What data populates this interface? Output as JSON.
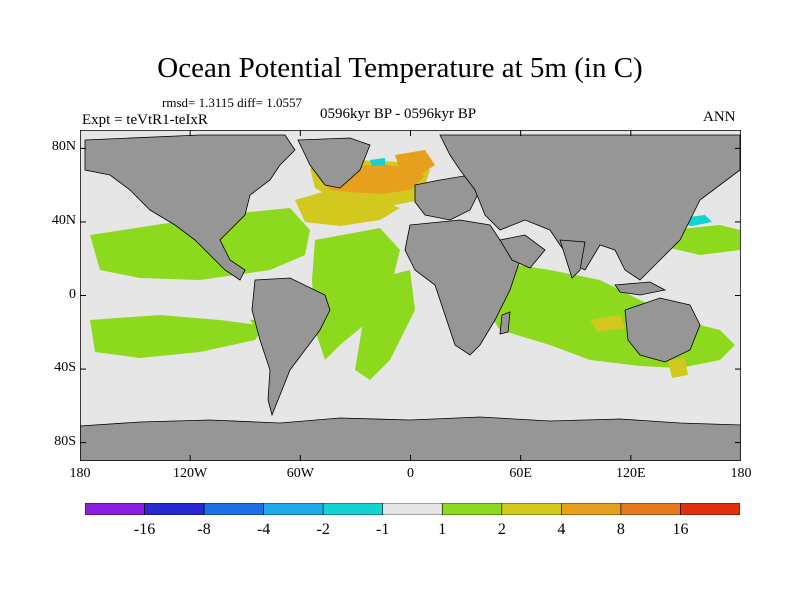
{
  "title": "Ocean Potential Temperature at 5m (in C)",
  "stats": "rmsd= 1.3115  diff= 1.0557",
  "experiment": "Expt = teVtR1-teIxR",
  "period": "0596kyr BP - 0596kyr BP",
  "season": "ANN",
  "lat_labels": [
    "80N",
    "40N",
    "0",
    "40S",
    "80S"
  ],
  "lat_values": [
    80,
    40,
    0,
    -40,
    -80
  ],
  "lon_labels": [
    "180",
    "120W",
    "60W",
    "0",
    "60E",
    "120E",
    "180"
  ],
  "lon_values": [
    -180,
    -120,
    -60,
    0,
    60,
    120,
    180
  ],
  "colorbar": {
    "colors": [
      "#8a1ee0",
      "#2828d2",
      "#1e6ee6",
      "#1eaae6",
      "#14d2d2",
      "#e6e6e6",
      "#8cd91e",
      "#d2c81e",
      "#e6a01e",
      "#e6781e",
      "#e0320a"
    ],
    "labels": [
      "-16",
      "-8",
      "-4",
      "-2",
      "-1",
      "1",
      "2",
      "4",
      "8",
      "16"
    ]
  },
  "colors": {
    "land": "#969696",
    "ocean_neutral": "#e6e6e6",
    "warm_small": "#8cd91e",
    "warm_mid": "#d2c81e",
    "warm_high": "#e6a01e",
    "cool": "#14d2d2"
  }
}
